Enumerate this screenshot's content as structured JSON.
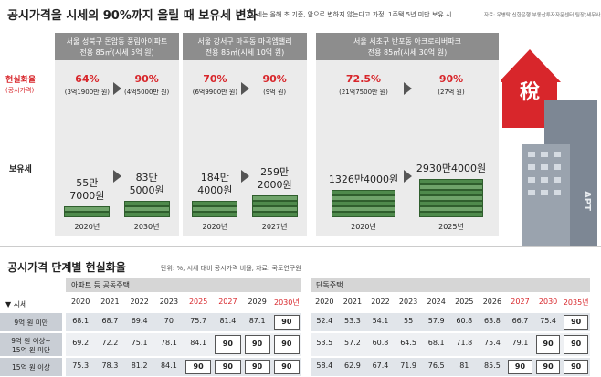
{
  "title": "공시가격을 시세의 90%까지 올릴 때 보유세 변화",
  "note": "시세는 올해 초 기준, 앞으로 변하지 않는다고 가정. 1주택 5년 미만 보유 시.",
  "source": "자료: 우병탁 신한은행 부동산투자자문센터 팀장(세무사)",
  "row_labels": {
    "ratio": "현실화율",
    "ratio_sub": "(공시가격)",
    "tax": "보유세"
  },
  "cases": [
    {
      "name": "서울 성북구 돈암동 풍림아이파트",
      "area": "전용 85㎡(시세 5억 원)",
      "from": {
        "ratio": "64%",
        "price": "(3억1900만 원)",
        "tax": [
          "55만",
          "7000원"
        ],
        "year": "2020년"
      },
      "to": {
        "ratio": "90%",
        "price": "(4억5000만 원)",
        "tax": [
          "83만",
          "5000원"
        ],
        "year": "2030년"
      }
    },
    {
      "name": "서울 강서구 마곡동 마곡엠밸리",
      "area": "전용 85㎡(시세 10억 원)",
      "from": {
        "ratio": "70%",
        "price": "(6억9900만 원)",
        "tax": [
          "184만",
          "4000원"
        ],
        "year": "2020년"
      },
      "to": {
        "ratio": "90%",
        "price": "(9억 원)",
        "tax": [
          "259만",
          "2000원"
        ],
        "year": "2027년"
      }
    },
    {
      "name": "서울 서초구 반포동 아크로리버파크",
      "area": "전용 85㎡(시세 30억 원)",
      "from": {
        "ratio": "72.5%",
        "price": "(21억7500만 원)",
        "tax": [
          "1326만4000원"
        ],
        "year": "2020년"
      },
      "to": {
        "ratio": "90%",
        "price": "(27억 원)",
        "tax": [
          "2930만4000원"
        ],
        "year": "2025년"
      }
    }
  ],
  "illustration": {
    "arrow_text": "稅",
    "building_text": "APT"
  },
  "table": {
    "title": "공시가격 단계별 현실화율",
    "note": "단위: %, 시세 대비 공시가격 비율, 자료: 국토연구원",
    "row_header": "▼ 시세",
    "groups": [
      {
        "name": "아파트 등 공동주택",
        "years": [
          2020,
          2021,
          2022,
          2023,
          2025,
          2027,
          2029,
          "2030년"
        ]
      },
      {
        "name": "단독주택",
        "years": [
          2020,
          2021,
          2022,
          2023,
          2024,
          2025,
          2026,
          2027,
          2030,
          "2035년"
        ]
      }
    ],
    "rows": [
      {
        "label": [
          "9억 원 미만"
        ],
        "values": [
          [
            68.1,
            68.7,
            69.4,
            70,
            75.7,
            81.4,
            87.1,
            90
          ],
          [
            52.4,
            53.3,
            54.1,
            55,
            57.9,
            60.8,
            63.8,
            66.7,
            75.4,
            90
          ]
        ]
      },
      {
        "label": [
          "9억 원 이상~",
          "15억 원 미만"
        ],
        "values": [
          [
            69.2,
            72.2,
            75.1,
            78.1,
            84.1,
            90,
            90,
            90
          ],
          [
            53.5,
            57.2,
            60.8,
            64.5,
            68.1,
            71.8,
            75.4,
            79.1,
            90,
            90
          ]
        ]
      },
      {
        "label": [
          "15억 원 이상"
        ],
        "values": [
          [
            75.3,
            78.3,
            81.2,
            84.1,
            90,
            90,
            90,
            90
          ],
          [
            58.4,
            62.9,
            67.4,
            71.9,
            76.5,
            81,
            85.5,
            90,
            90,
            90
          ]
        ]
      }
    ]
  }
}
